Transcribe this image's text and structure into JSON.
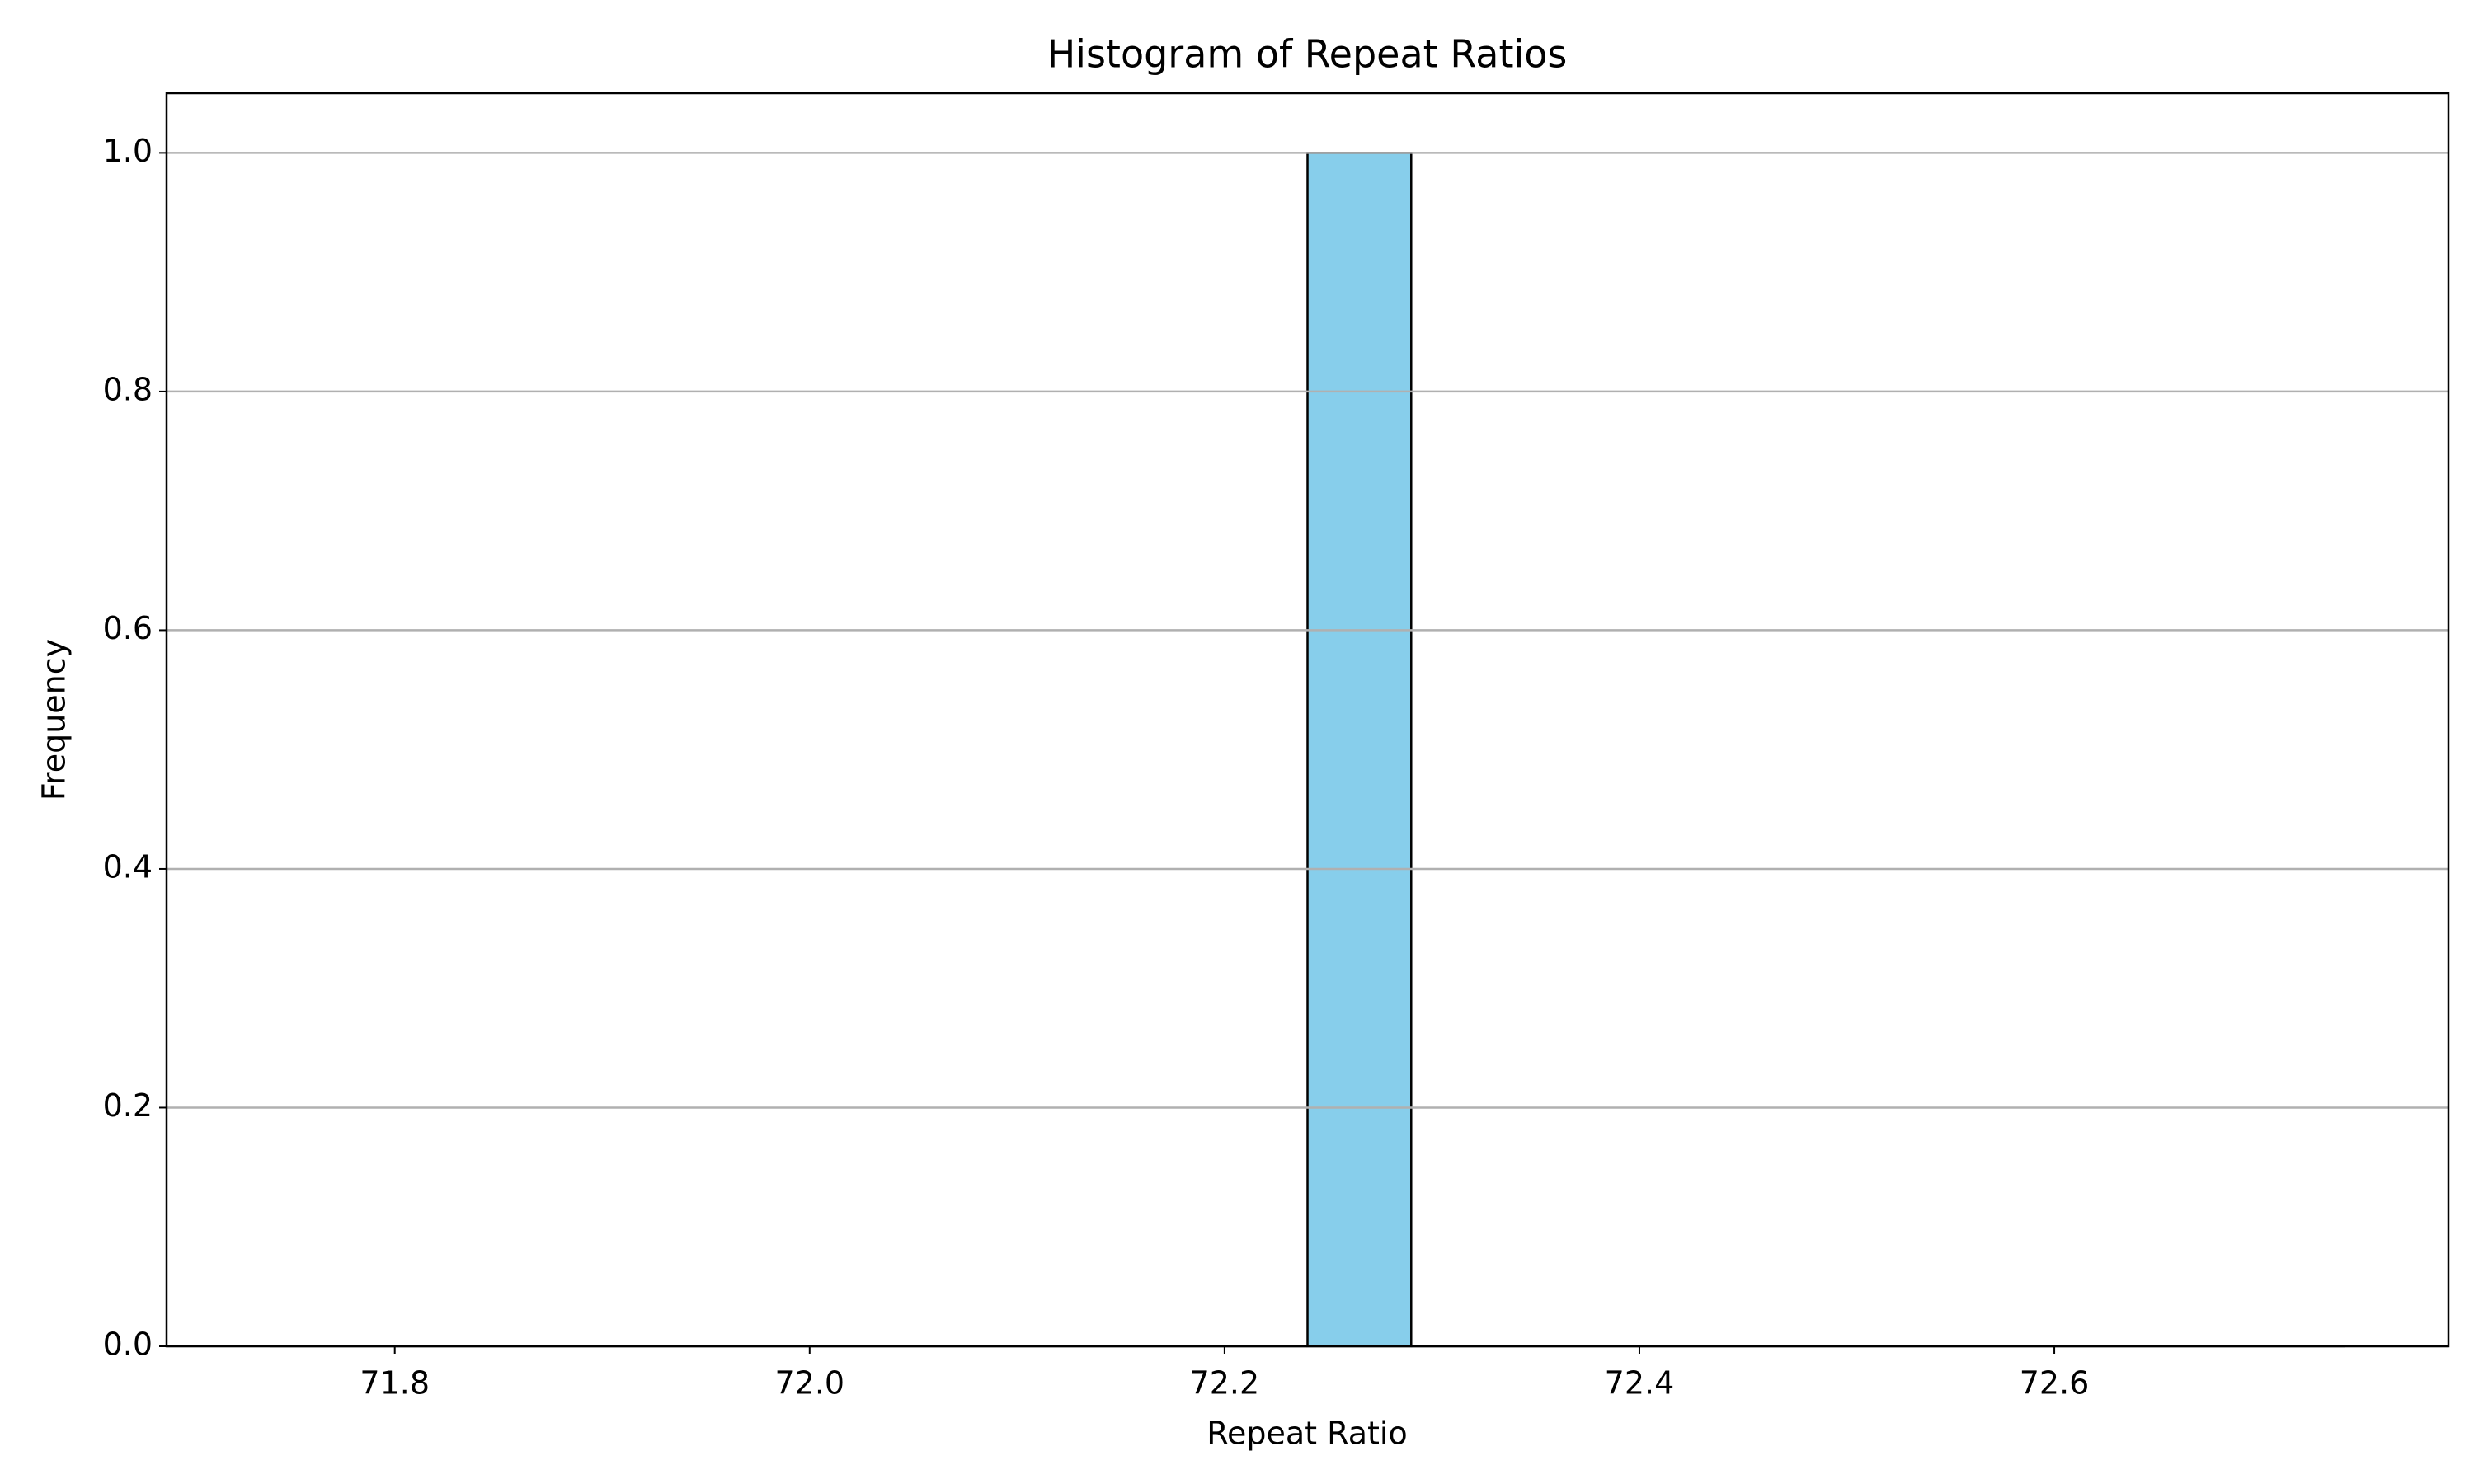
{
  "chart_data": {
    "type": "histogram",
    "title": "Histogram of Repeat Ratios",
    "x_label": "Repeat Ratio",
    "y_label": "Frequency",
    "bins": [
      71.74,
      71.79,
      71.84,
      71.89,
      71.94,
      71.99,
      72.04,
      72.09,
      72.14,
      72.19,
      72.24,
      72.29,
      72.34,
      72.39,
      72.44,
      72.49,
      72.54,
      72.59,
      72.64,
      72.69,
      72.74
    ],
    "values": [
      0,
      0,
      0,
      0,
      0,
      0,
      0,
      0,
      0,
      0,
      1,
      0,
      0,
      0,
      0,
      0,
      0,
      0,
      0,
      0
    ],
    "color": "#87ceeb",
    "edge_color": "#000000",
    "xlim": [
      71.69,
      72.79
    ],
    "xticks": [
      71.8,
      {
        "value": 72,
        "label": "72.0"
      },
      72.2,
      72.4,
      72.6
    ],
    "ylim": [
      0,
      1.05
    ],
    "yticks": [
      {
        "value": 0,
        "label": "0.0"
      },
      0.2,
      0.4,
      0.6,
      0.8,
      {
        "value": 1,
        "label": "1.0"
      }
    ],
    "grid": "y"
  }
}
